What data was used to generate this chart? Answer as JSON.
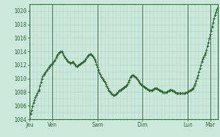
{
  "background_color": "#cce8dc",
  "plot_bg_color": "#cce8dc",
  "line_color": "#2d6e2d",
  "grid_color": "#aacbbb",
  "tick_label_color": "#2d6e2d",
  "axis_color": "#2d6e2d",
  "vline_color": "#4a7a5a",
  "ylim": [
    1004,
    1021
  ],
  "yticks": [
    1004,
    1006,
    1008,
    1010,
    1012,
    1014,
    1016,
    1018,
    1020
  ],
  "day_labels": [
    "Jeu",
    "Ven",
    "Sam",
    "Dim",
    "Lun",
    "Mar"
  ],
  "day_positions": [
    0,
    24,
    72,
    120,
    168,
    192
  ],
  "xlim": [
    0,
    200
  ],
  "x_data": [
    0,
    1,
    2,
    3,
    4,
    5,
    6,
    7,
    8,
    9,
    10,
    11,
    12,
    13,
    14,
    15,
    16,
    17,
    18,
    19,
    20,
    21,
    22,
    23,
    24,
    25,
    26,
    27,
    28,
    29,
    30,
    31,
    32,
    33,
    34,
    35,
    36,
    37,
    38,
    39,
    40,
    41,
    42,
    43,
    44,
    45,
    46,
    47,
    48,
    49,
    50,
    51,
    52,
    53,
    54,
    55,
    56,
    57,
    58,
    59,
    60,
    61,
    62,
    63,
    64,
    65,
    66,
    67,
    68,
    69,
    70,
    71,
    72,
    73,
    74,
    75,
    76,
    77,
    78,
    79,
    80,
    81,
    82,
    83,
    84,
    85,
    86,
    87,
    88,
    89,
    90,
    91,
    92,
    93,
    94,
    95,
    96,
    97,
    98,
    99,
    100,
    101,
    102,
    103,
    104,
    105,
    106,
    107,
    108,
    109,
    110,
    111,
    112,
    113,
    114,
    115,
    116,
    117,
    118,
    119,
    120,
    121,
    122,
    123,
    124,
    125,
    126,
    127,
    128,
    129,
    130,
    131,
    132,
    133,
    134,
    135,
    136,
    137,
    138,
    139,
    140,
    141,
    142,
    143,
    144,
    145,
    146,
    147,
    148,
    149,
    150,
    151,
    152,
    153,
    154,
    155,
    156,
    157,
    158,
    159,
    160,
    161,
    162,
    163,
    164,
    165,
    166,
    167,
    168,
    169,
    170,
    171,
    172,
    173,
    174,
    175,
    176,
    177,
    178,
    179,
    180,
    181,
    182,
    183,
    184,
    185,
    186,
    187,
    188,
    189,
    190,
    191,
    192,
    193,
    194,
    195,
    196,
    197,
    198,
    199,
    200
  ],
  "y_data": [
    1004.2,
    1004.8,
    1005.3,
    1005.9,
    1006.4,
    1006.8,
    1007.2,
    1007.5,
    1007.8,
    1008.1,
    1008.4,
    1009.0,
    1009.5,
    1010.0,
    1010.4,
    1010.6,
    1010.8,
    1011.0,
    1011.2,
    1011.4,
    1011.6,
    1011.8,
    1012.0,
    1012.1,
    1012.2,
    1012.4,
    1012.6,
    1012.8,
    1013.1,
    1013.4,
    1013.6,
    1013.8,
    1013.9,
    1014.0,
    1014.0,
    1013.8,
    1013.5,
    1013.2,
    1013.0,
    1012.8,
    1012.6,
    1012.5,
    1012.4,
    1012.3,
    1012.3,
    1012.4,
    1012.5,
    1012.3,
    1012.1,
    1011.9,
    1011.8,
    1011.9,
    1012.0,
    1012.1,
    1012.2,
    1012.3,
    1012.4,
    1012.5,
    1012.6,
    1012.8,
    1013.0,
    1013.2,
    1013.4,
    1013.5,
    1013.6,
    1013.6,
    1013.5,
    1013.3,
    1013.1,
    1012.8,
    1012.5,
    1012.1,
    1011.7,
    1011.3,
    1010.9,
    1010.6,
    1010.3,
    1010.1,
    1009.9,
    1009.7,
    1009.5,
    1009.2,
    1008.9,
    1008.6,
    1008.3,
    1008.1,
    1007.9,
    1007.7,
    1007.6,
    1007.5,
    1007.5,
    1007.6,
    1007.7,
    1007.8,
    1008.0,
    1008.2,
    1008.3,
    1008.4,
    1008.5,
    1008.6,
    1008.7,
    1008.8,
    1008.9,
    1009.0,
    1009.2,
    1009.5,
    1009.8,
    1010.2,
    1010.4,
    1010.5,
    1010.5,
    1010.4,
    1010.3,
    1010.2,
    1010.0,
    1009.8,
    1009.6,
    1009.4,
    1009.2,
    1009.1,
    1009.0,
    1008.9,
    1008.8,
    1008.7,
    1008.6,
    1008.5,
    1008.4,
    1008.3,
    1008.3,
    1008.3,
    1008.3,
    1008.4,
    1008.5,
    1008.6,
    1008.6,
    1008.6,
    1008.5,
    1008.4,
    1008.3,
    1008.2,
    1008.1,
    1008.0,
    1007.9,
    1007.9,
    1007.9,
    1007.9,
    1008.0,
    1008.1,
    1008.2,
    1008.3,
    1008.4,
    1008.3,
    1008.2,
    1008.1,
    1008.0,
    1007.9,
    1007.8,
    1007.8,
    1007.8,
    1007.8,
    1007.8,
    1007.8,
    1007.8,
    1007.8,
    1007.8,
    1007.8,
    1007.9,
    1007.9,
    1008.0,
    1008.1,
    1008.2,
    1008.3,
    1008.4,
    1008.5,
    1008.7,
    1009.0,
    1009.3,
    1009.7,
    1010.1,
    1010.5,
    1011.0,
    1011.5,
    1012.0,
    1012.5,
    1012.9,
    1013.2,
    1013.5,
    1013.8,
    1014.2,
    1014.8,
    1015.3,
    1015.9,
    1016.5,
    1017.1,
    1017.7,
    1018.3,
    1018.9,
    1019.4,
    1019.8,
    1020.2,
    1020.5
  ]
}
